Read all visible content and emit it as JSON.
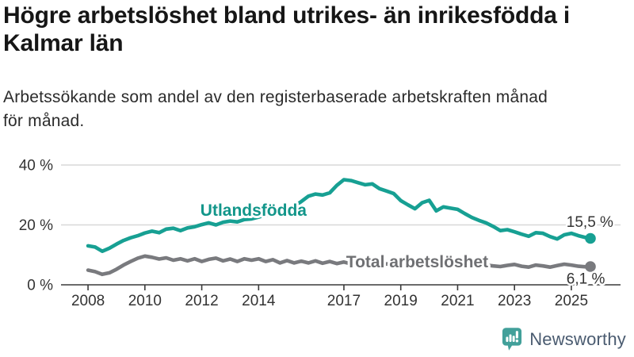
{
  "footer": {
    "brand": "Newsworthy",
    "logo_color": "#42a09a",
    "text_color": "#4a5b70"
  },
  "chart_data": {
    "type": "line",
    "title": "Högre arbetslöshet bland utrikes- än inrikesfödda i Kalmar län",
    "subtitle": "Arbetssökande som andel av den registerbaserade arbetskraften månad för månad.",
    "unit": "%",
    "grid": "horizontal",
    "legend_position": "inline",
    "xlim": [
      2007.05,
      2026.73
    ],
    "ylim": [
      0,
      40
    ],
    "y_ticks": [
      {
        "value": 0,
        "label": "0 %"
      },
      {
        "value": 20,
        "label": "20 %"
      },
      {
        "value": 40,
        "label": "40 %"
      }
    ],
    "x_ticks": [
      {
        "value": 2008,
        "label": "2008"
      },
      {
        "value": 2010,
        "label": "2010"
      },
      {
        "value": 2012,
        "label": "2012"
      },
      {
        "value": 2014,
        "label": "2014"
      },
      {
        "value": 2017,
        "label": "2017"
      },
      {
        "value": 2019,
        "label": "2019"
      },
      {
        "value": 2021,
        "label": "2021"
      },
      {
        "value": 2023,
        "label": "2023"
      },
      {
        "value": 2025,
        "label": "2025"
      }
    ],
    "x": [
      2008.0,
      2008.25,
      2008.5,
      2008.75,
      2009.0,
      2009.25,
      2009.5,
      2009.75,
      2010.0,
      2010.25,
      2010.5,
      2010.75,
      2011.0,
      2011.25,
      2011.5,
      2011.75,
      2012.0,
      2012.25,
      2012.5,
      2012.75,
      2013.0,
      2013.25,
      2013.5,
      2013.75,
      2014.0,
      2014.25,
      2014.5,
      2014.75,
      2015.0,
      2015.25,
      2015.5,
      2015.75,
      2016.0,
      2016.25,
      2016.5,
      2016.75,
      2017.0,
      2017.25,
      2017.5,
      2017.75,
      2018.0,
      2018.25,
      2018.5,
      2018.75,
      2019.0,
      2019.25,
      2019.5,
      2019.75,
      2020.0,
      2020.25,
      2020.5,
      2020.75,
      2021.0,
      2021.25,
      2021.5,
      2021.75,
      2022.0,
      2022.25,
      2022.5,
      2022.75,
      2023.0,
      2023.25,
      2023.5,
      2023.75,
      2024.0,
      2024.25,
      2024.5,
      2024.75,
      2025.0,
      2025.25,
      2025.5,
      2025.67
    ],
    "series": [
      {
        "name": "Utlandsfödda",
        "color": "#17a093",
        "end_label": "15,5 %",
        "end_value": 15.5,
        "values": [
          13.0,
          12.6,
          11.2,
          12.2,
          13.6,
          14.8,
          15.7,
          16.4,
          17.3,
          17.9,
          17.4,
          18.6,
          18.9,
          18.1,
          19.0,
          19.4,
          20.1,
          20.7,
          20.0,
          20.9,
          21.3,
          21.0,
          21.8,
          22.0,
          22.6,
          23.4,
          23.1,
          24.0,
          25.0,
          26.2,
          27.8,
          29.6,
          30.3,
          30.0,
          30.7,
          33.2,
          35.1,
          34.8,
          34.1,
          33.4,
          33.7,
          32.1,
          31.3,
          30.5,
          28.1,
          26.7,
          25.4,
          27.4,
          28.2,
          24.7,
          26.0,
          25.6,
          25.2,
          23.8,
          22.5,
          21.5,
          20.7,
          19.5,
          18.1,
          18.4,
          17.7,
          16.9,
          16.2,
          17.4,
          17.2,
          16.1,
          15.3,
          16.7,
          17.2,
          16.4,
          15.8,
          15.5
        ]
      },
      {
        "name": "Total arbetslöshet",
        "color": "#797a7e",
        "end_label": "6,1 %",
        "end_value": 6.1,
        "values": [
          4.9,
          4.4,
          3.5,
          4.0,
          5.2,
          6.6,
          7.8,
          8.9,
          9.6,
          9.2,
          8.6,
          9.0,
          8.2,
          8.7,
          8.0,
          8.7,
          7.8,
          8.5,
          8.9,
          8.0,
          8.6,
          7.8,
          8.7,
          8.2,
          8.7,
          7.8,
          8.4,
          7.3,
          8.1,
          7.3,
          7.9,
          7.3,
          8.0,
          7.2,
          7.8,
          7.1,
          7.6,
          7.0,
          7.4,
          6.9,
          7.2,
          6.7,
          7.0,
          6.6,
          6.9,
          6.5,
          6.8,
          7.2,
          7.8,
          8.6,
          8.9,
          8.5,
          8.2,
          7.8,
          7.3,
          6.9,
          6.6,
          6.3,
          6.1,
          6.5,
          6.8,
          6.2,
          5.9,
          6.6,
          6.3,
          5.9,
          6.4,
          6.9,
          6.6,
          6.2,
          6.0,
          6.1
        ]
      }
    ],
    "annotations": [
      {
        "text": "Utlandsfödda",
        "x": 2011.95,
        "y": 23.0,
        "color": "#12968a",
        "size": 21,
        "bold": true
      },
      {
        "text": "Total arbetslöshet",
        "x": 2017.08,
        "y": 5.8,
        "color": "#6f7073",
        "size": 21,
        "bold": true
      },
      {
        "text": "15,5 %",
        "x": 2024.83,
        "y": 19.4,
        "color": "#333333",
        "size": 19,
        "bold": false
      },
      {
        "text": "6,1 %",
        "x": 2024.83,
        "y": 0.4,
        "color": "#333333",
        "size": 19,
        "bold": false
      }
    ]
  }
}
